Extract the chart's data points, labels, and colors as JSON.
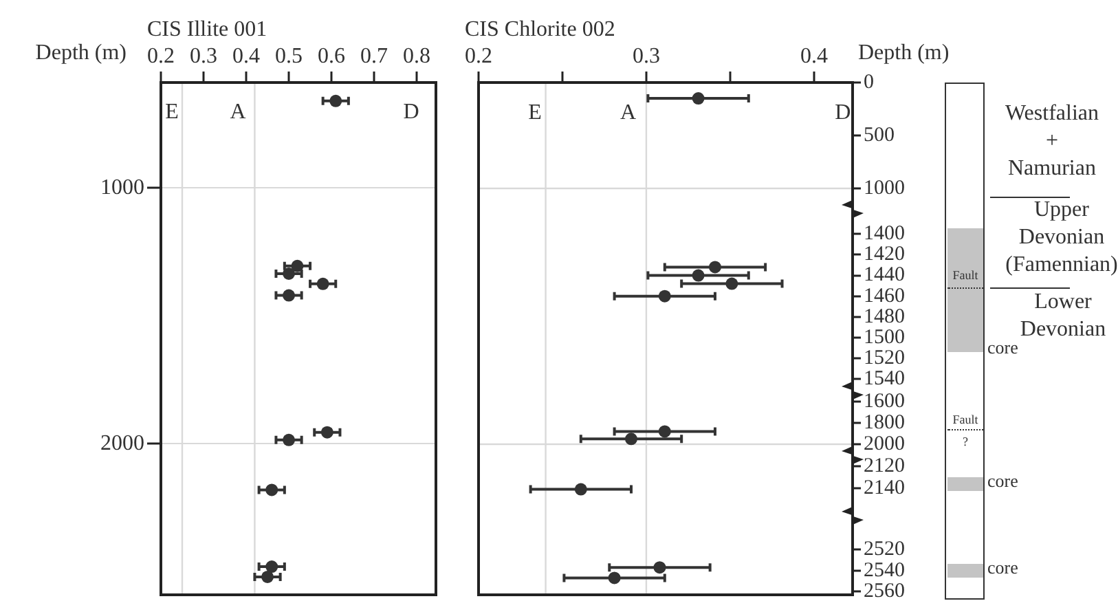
{
  "chart_data": [
    {
      "type": "scatter",
      "xlabel": "CIS Illite 001",
      "ylabel": "Depth (m)",
      "xlim": [
        0.2,
        0.845
      ],
      "xticks": [
        0.2,
        0.3,
        0.4,
        0.5,
        0.6,
        0.7,
        0.8
      ],
      "ylim": [
        2590,
        588
      ],
      "yticks": [
        1000,
        2000
      ],
      "grid": "y",
      "marker": "circle",
      "ref_lines": [
        {
          "axis": "x",
          "value": 0.25,
          "color": "#d9d9d9"
        },
        {
          "axis": "x",
          "value": 0.42,
          "color": "#d9d9d9"
        }
      ],
      "annotations": [
        "E",
        "A",
        "D"
      ],
      "series": [
        {
          "color": "#333333",
          "x": [
            0.61,
            0.52,
            0.5,
            0.58,
            0.5,
            0.59,
            0.5,
            0.46,
            0.46,
            0.45
          ],
          "values": [
            660,
            1305,
            1335,
            1375,
            1420,
            1955,
            1985,
            2180,
            2480,
            2520
          ],
          "xerrors": [
            0.03,
            0.03,
            0.03,
            0.03,
            0.03,
            0.03,
            0.03,
            0.03,
            0.03,
            0.03
          ]
        }
      ]
    },
    {
      "type": "scatter",
      "xlabel": "CIS Chlorite 002",
      "ylabel": "Depth (m)",
      "xlim": [
        0.2,
        0.423
      ],
      "xticks": [
        0.2,
        {
          "value": 0.25,
          "label": null
        },
        0.3,
        {
          "value": 0.35,
          "label": null
        },
        0.4
      ],
      "ylim": [
        1195,
        0
      ],
      "yticks": [
        0,
        500,
        1000
      ],
      "marker": "circle",
      "ref_lines": [
        {
          "axis": "x",
          "value": 0.24,
          "color": "#d9d9d9"
        },
        {
          "axis": "x",
          "value": 0.3,
          "color": "#d9d9d9"
        },
        {
          "axis": "y",
          "value": 1000,
          "color": "#d9d9d9"
        }
      ],
      "annotations": [
        "E",
        "A",
        "D",
        "Westfalian + Namurian",
        "Upper Devonian (Famennian)",
        "Lower Devonian",
        "core",
        "core",
        "core",
        "Fault",
        "Fault",
        "?"
      ],
      "series": [
        {
          "color": "#333333",
          "x": [
            0.331
          ],
          "values": [
            150
          ],
          "xerrors": [
            0.03
          ]
        }
      ]
    },
    {
      "type": "scatter",
      "xlim": [
        0.2,
        0.423
      ],
      "ylim": [
        1551,
        1376
      ],
      "yticks": [
        1400,
        1420,
        1440,
        1460,
        1480,
        1500,
        1520,
        1540
      ],
      "tick_labels": "y",
      "marker": "circle",
      "ref_lines": [
        {
          "axis": "x",
          "value": 0.24,
          "color": "#d9d9d9"
        },
        {
          "axis": "x",
          "value": 0.3,
          "color": "#d9d9d9"
        }
      ],
      "series": [
        {
          "color": "#333333",
          "x": [
            0.341,
            0.331,
            0.351,
            0.311
          ],
          "values": [
            1432,
            1440,
            1448,
            1460
          ],
          "xerrors": [
            0.03,
            0.03,
            0.03,
            0.03
          ]
        }
      ]
    },
    {
      "type": "scatter",
      "xlim": [
        0.2,
        0.423
      ],
      "ylim": [
        2103,
        1497
      ],
      "yticks": [
        1600,
        1800,
        2000
      ],
      "tick_labels": "y",
      "marker": "circle",
      "ref_lines": [
        {
          "axis": "x",
          "value": 0.24,
          "color": "#d9d9d9"
        },
        {
          "axis": "x",
          "value": 0.3,
          "color": "#d9d9d9"
        },
        {
          "axis": "y",
          "value": 2000,
          "color": "#d9d9d9"
        }
      ],
      "series": [
        {
          "color": "#333333",
          "x": [
            0.311,
            0.291
          ],
          "values": [
            1880,
            1950
          ],
          "xerrors": [
            0.03,
            0.03
          ]
        }
      ]
    },
    {
      "type": "scatter",
      "xlim": [
        0.2,
        0.423
      ],
      "ylim": [
        2165,
        2110
      ],
      "yticks": [
        2120,
        2140
      ],
      "tick_labels": "y",
      "marker": "circle",
      "ref_lines": [
        {
          "axis": "x",
          "value": 0.24,
          "color": "#d9d9d9"
        },
        {
          "axis": "x",
          "value": 0.3,
          "color": "#d9d9d9"
        }
      ],
      "series": [
        {
          "color": "#333333",
          "x": [
            0.261
          ],
          "values": [
            2141
          ],
          "xerrors": [
            0.03
          ]
        }
      ]
    },
    {
      "type": "scatter",
      "xlim": [
        0.2,
        0.423
      ],
      "ylim": [
        2563,
        2488
      ],
      "yticks": [
        2520,
        2540,
        2560
      ],
      "tick_labels": "y",
      "marker": "circle",
      "ref_lines": [
        {
          "axis": "x",
          "value": 0.24,
          "color": "#d9d9d9"
        },
        {
          "axis": "x",
          "value": 0.3,
          "color": "#d9d9d9"
        }
      ],
      "series": [
        {
          "color": "#333333",
          "x": [
            0.308,
            0.281
          ],
          "values": [
            2537,
            2547
          ],
          "xerrors": [
            0.03,
            0.03
          ]
        }
      ]
    }
  ]
}
